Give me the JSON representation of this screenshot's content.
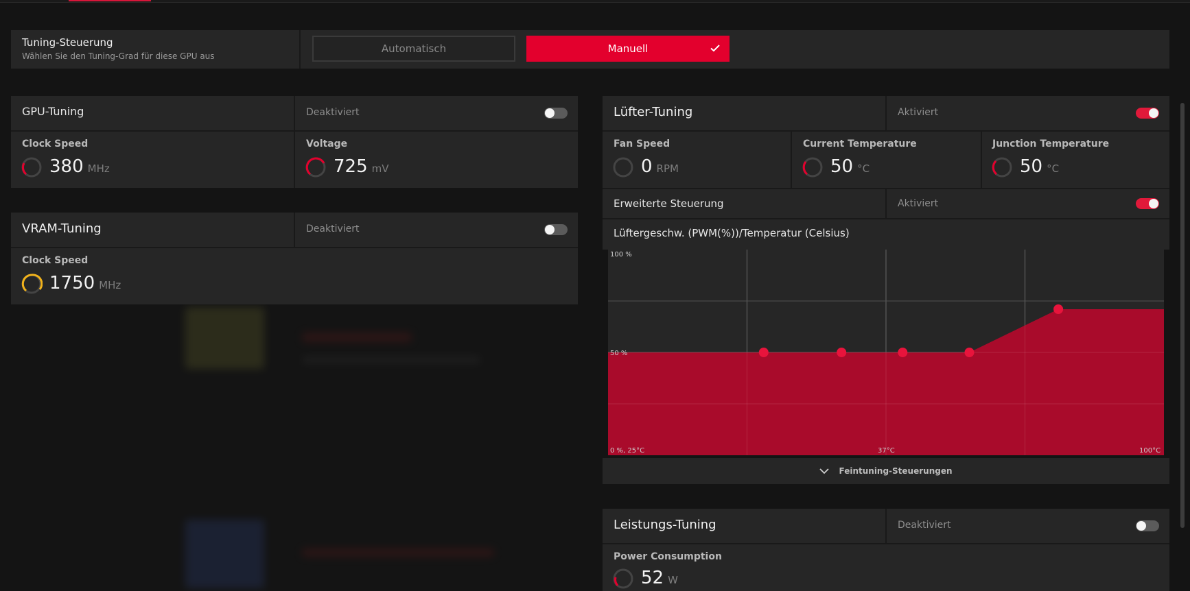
{
  "tuning_control": {
    "title": "Tuning-Steuerung",
    "subtitle": "Wählen Sie den Tuning-Grad für diese GPU aus",
    "auto_label": "Automatisch",
    "manual_label": "Manuell"
  },
  "gpu_tuning": {
    "title": "GPU-Tuning",
    "state": "Deaktiviert",
    "enabled": false,
    "clock": {
      "label": "Clock Speed",
      "value": "380",
      "unit": "MHz"
    },
    "voltage": {
      "label": "Voltage",
      "value": "725",
      "unit": "mV"
    }
  },
  "vram_tuning": {
    "title": "VRAM-Tuning",
    "state": "Deaktiviert",
    "enabled": false,
    "clock": {
      "label": "Clock Speed",
      "value": "1750",
      "unit": "MHz"
    }
  },
  "fan_tuning": {
    "title": "Lüfter-Tuning",
    "state": "Aktiviert",
    "enabled": true,
    "fan_speed": {
      "label": "Fan Speed",
      "value": "0",
      "unit": "RPM"
    },
    "current_temp": {
      "label": "Current Temperature",
      "value": "50",
      "unit": "°C"
    },
    "junction_temp": {
      "label": "Junction Temperature",
      "value": "50",
      "unit": "°C"
    },
    "advanced": {
      "label": "Erweiterte Steuerung",
      "state": "Aktiviert",
      "enabled": true
    },
    "curve_title": "Lüftergeschw. (PWM(%))/Temperatur (Celsius)",
    "fine_tuning_label": "Feintuning-Steuerungen"
  },
  "power_tuning": {
    "title": "Leistungs-Tuning",
    "state": "Deaktiviert",
    "enabled": false,
    "power": {
      "label": "Power Consumption",
      "value": "52",
      "unit": "W"
    }
  },
  "colors": {
    "accent": "#e3002d",
    "yellow": "#f2b31b",
    "panel": "#262626"
  },
  "chart_data": {
    "type": "area",
    "y_axis_labels": [
      "100 %",
      "50 %"
    ],
    "x_axis_labels": [
      "0 %, 25°C",
      "37°C",
      "100°C"
    ],
    "points": [
      {
        "x": 28,
        "y": 50
      },
      {
        "x": 42,
        "y": 50
      },
      {
        "x": 53,
        "y": 50
      },
      {
        "x": 65,
        "y": 50
      },
      {
        "x": 81,
        "y": 71
      }
    ],
    "fill_color": "#b00a2b",
    "point_color": "#e8143c",
    "grid": true
  }
}
